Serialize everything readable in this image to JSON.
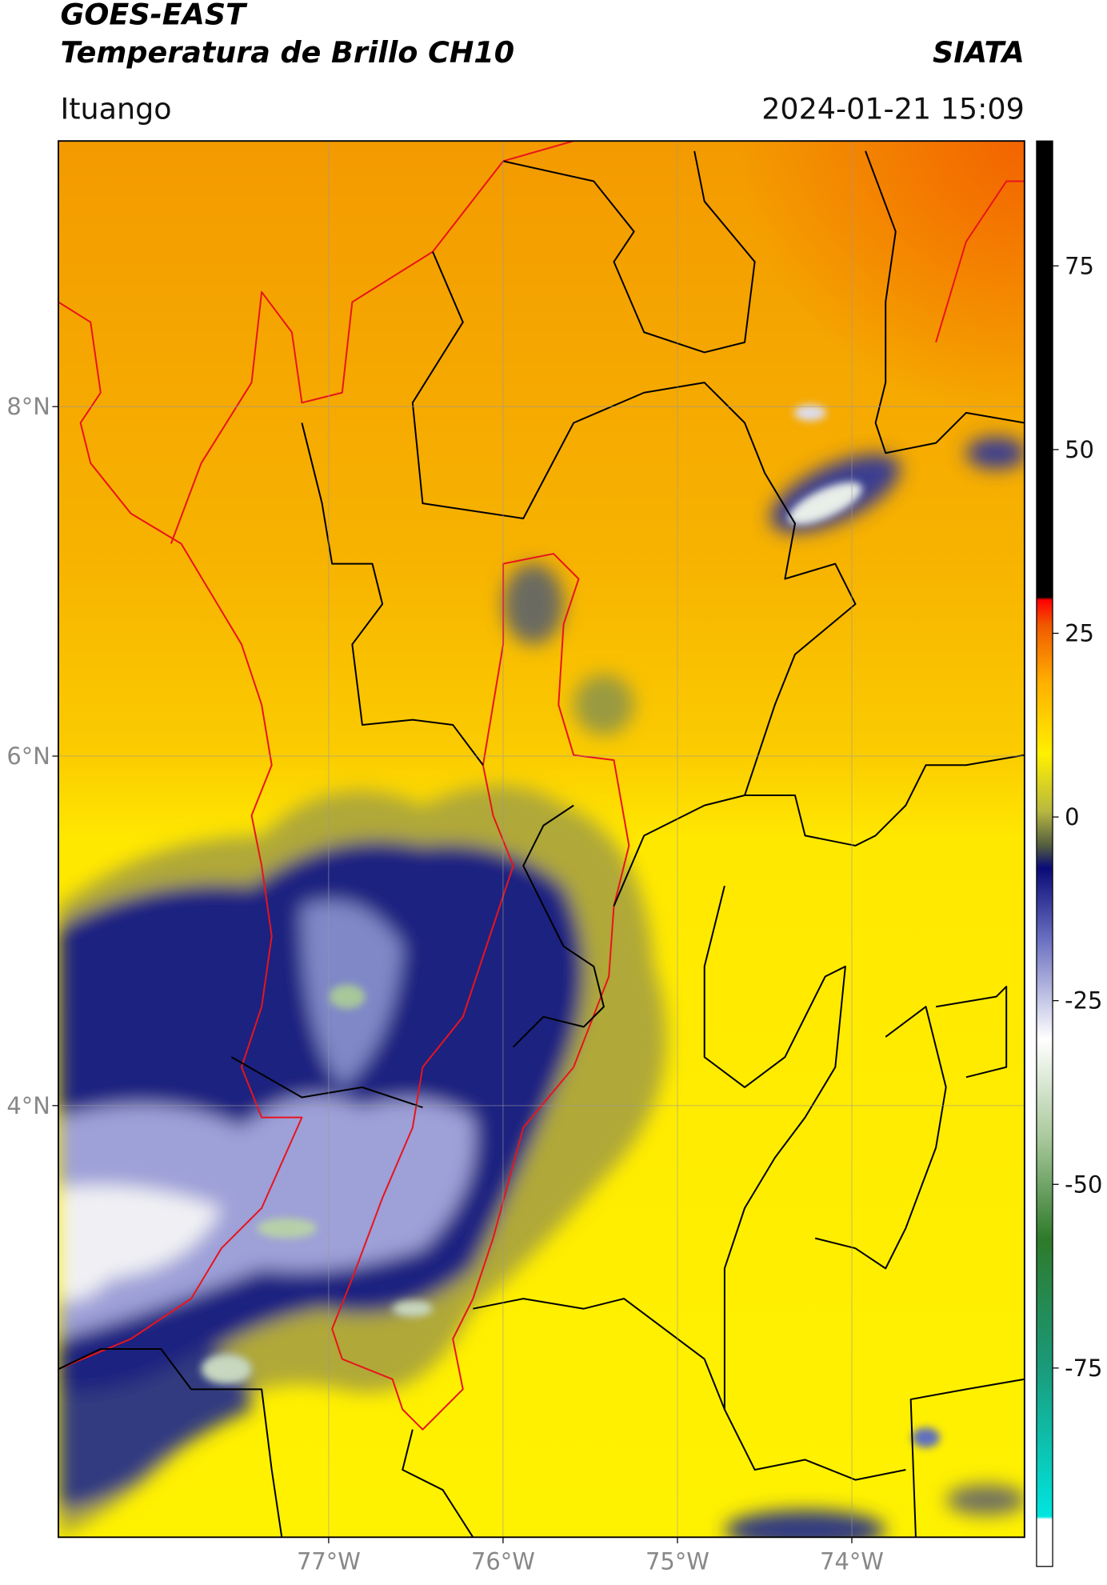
{
  "header": {
    "title": "GOES-EAST",
    "subtitle": "Temperatura de Brillo CH10",
    "organization": "SIATA",
    "location": "Ituango",
    "datetime": "2024-01-21 15:09"
  },
  "map": {
    "xlim": [
      -78.55,
      -73.01
    ],
    "ylim": [
      1.53,
      9.52
    ],
    "xticks": [
      {
        "value": -77,
        "label": "77°W"
      },
      {
        "value": -76,
        "label": "76°W"
      },
      {
        "value": -75,
        "label": "75°W"
      },
      {
        "value": -74,
        "label": "74°W"
      }
    ],
    "yticks": [
      {
        "value": 8,
        "label": "8°N"
      },
      {
        "value": 6,
        "label": "6°N"
      },
      {
        "value": 4,
        "label": "4°N"
      }
    ],
    "grid": true
  },
  "colorbar": {
    "ylim": [
      -102,
      92
    ],
    "yticks": [
      75,
      50,
      25,
      0,
      -25,
      -50,
      -75
    ]
  }
}
